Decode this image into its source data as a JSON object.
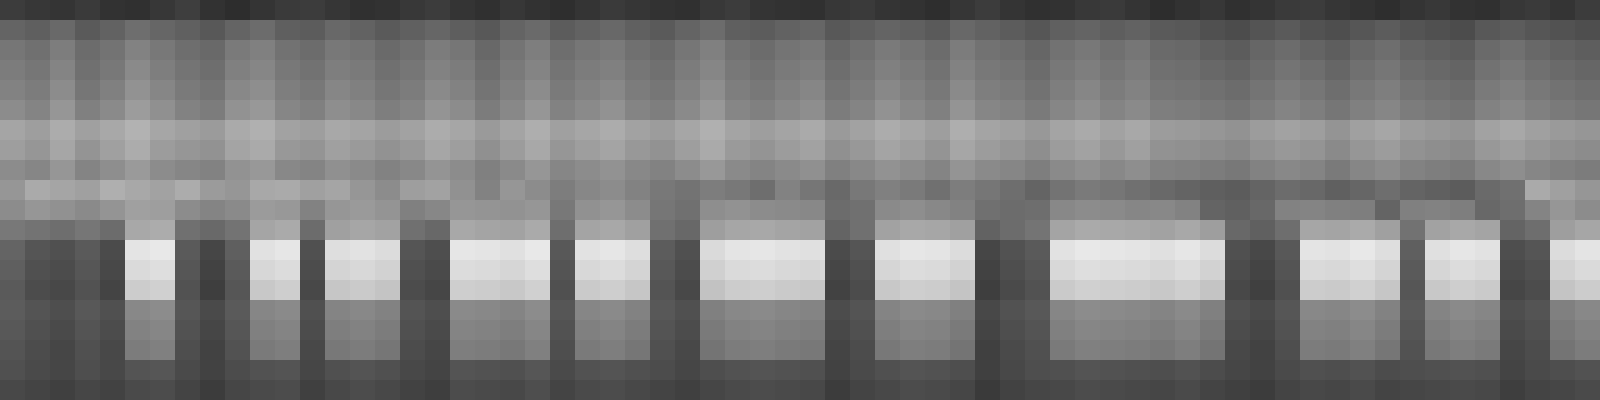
{
  "chart_data": {
    "type": "heatmap",
    "tick_labels": false,
    "zlim": [
      0,
      255
    ],
    "cells": [
      [
        60,
        55,
        52,
        58,
        50,
        48,
        55,
        62,
        50,
        45,
        52,
        58,
        60,
        54,
        48,
        50,
        56,
        60,
        52,
        48,
        55,
        50,
        46,
        52,
        58,
        54,
        50,
        48,
        56,
        60,
        52,
        50,
        48,
        55,
        58,
        52,
        50,
        46,
        54,
        60,
        52,
        48,
        50,
        56,
        58,
        52,
        45,
        50,
        55,
        48,
        52,
        58,
        60,
        54,
        50,
        46,
        52,
        56,
        50,
        48,
        55,
        58,
        52,
        60
      ],
      [
        100,
        95,
        105,
        90,
        98,
        110,
        102,
        96,
        88,
        100,
        108,
        95,
        92,
        104,
        98,
        90,
        96,
        102,
        94,
        88,
        100,
        106,
        92,
        98,
        104,
        96,
        90,
        100,
        108,
        95,
        92,
        98,
        102,
        88,
        94,
        100,
        96,
        90,
        104,
        98,
        92,
        86,
        96,
        100,
        94,
        98,
        90,
        88,
        80,
        76,
        84,
        90,
        82,
        78,
        86,
        92,
        84,
        80,
        76,
        88,
        92,
        86,
        82,
        78
      ],
      [
        118,
        112,
        125,
        108,
        115,
        130,
        120,
        110,
        105,
        122,
        128,
        114,
        108,
        120,
        116,
        106,
        112,
        124,
        118,
        104,
        116,
        126,
        110,
        118,
        122,
        112,
        106,
        118,
        128,
        114,
        108,
        116,
        120,
        104,
        112,
        122,
        116,
        108,
        124,
        114,
        110,
        102,
        114,
        120,
        112,
        118,
        106,
        104,
        96,
        92,
        102,
        108,
        100,
        94,
        104,
        110,
        100,
        96,
        92,
        106,
        112,
        104,
        98,
        94
      ],
      [
        124,
        118,
        132,
        112,
        120,
        138,
        126,
        116,
        110,
        128,
        134,
        120,
        114,
        126,
        122,
        112,
        118,
        130,
        124,
        110,
        122,
        132,
        116,
        124,
        128,
        118,
        112,
        124,
        134,
        120,
        114,
        122,
        126,
        110,
        118,
        128,
        122,
        114,
        130,
        120,
        116,
        108,
        120,
        126,
        118,
        124,
        112,
        110,
        104,
        100,
        108,
        116,
        110,
        102,
        112,
        118,
        108,
        104,
        100,
        114,
        120,
        112,
        106,
        102
      ],
      [
        130,
        124,
        140,
        118,
        128,
        146,
        134,
        122,
        116,
        136,
        142,
        126,
        120,
        134,
        128,
        118,
        124,
        138,
        130,
        116,
        128,
        140,
        122,
        130,
        136,
        124,
        118,
        130,
        142,
        126,
        120,
        128,
        134,
        116,
        124,
        136,
        128,
        120,
        138,
        126,
        122,
        114,
        126,
        134,
        124,
        130,
        118,
        116,
        112,
        108,
        116,
        124,
        118,
        110,
        120,
        126,
        116,
        112,
        108,
        122,
        128,
        120,
        114,
        110
      ],
      [
        140,
        132,
        150,
        128,
        138,
        156,
        144,
        130,
        124,
        146,
        152,
        134,
        128,
        142,
        136,
        126,
        132,
        148,
        140,
        124,
        136,
        150,
        130,
        138,
        146,
        132,
        126,
        138,
        152,
        134,
        128,
        136,
        142,
        124,
        132,
        146,
        136,
        128,
        148,
        134,
        130,
        122,
        134,
        142,
        132,
        138,
        126,
        124,
        120,
        116,
        124,
        132,
        126,
        118,
        128,
        134,
        124,
        120,
        116,
        130,
        136,
        128,
        122,
        118
      ],
      [
        165,
        158,
        172,
        160,
        168,
        178,
        166,
        160,
        155,
        170,
        176,
        162,
        158,
        168,
        164,
        156,
        162,
        172,
        166,
        154,
        164,
        174,
        160,
        166,
        172,
        162,
        156,
        166,
        176,
        164,
        158,
        164,
        170,
        154,
        162,
        172,
        166,
        158,
        174,
        164,
        160,
        152,
        164,
        170,
        162,
        168,
        156,
        154,
        150,
        146,
        156,
        162,
        158,
        148,
        160,
        166,
        156,
        152,
        148,
        162,
        168,
        160,
        154,
        150
      ],
      [
        158,
        150,
        166,
        148,
        160,
        172,
        156,
        150,
        146,
        164,
        170,
        152,
        148,
        160,
        154,
        146,
        152,
        166,
        158,
        144,
        156,
        168,
        150,
        158,
        164,
        152,
        146,
        158,
        170,
        154,
        148,
        156,
        162,
        144,
        152,
        164,
        158,
        148,
        166,
        156,
        150,
        142,
        156,
        162,
        152,
        160,
        146,
        144,
        140,
        136,
        146,
        152,
        148,
        138,
        150,
        156,
        146,
        142,
        138,
        152,
        158,
        150,
        144,
        140
      ],
      [
        140,
        134,
        150,
        132,
        142,
        154,
        140,
        134,
        130,
        146,
        152,
        136,
        132,
        144,
        138,
        130,
        136,
        148,
        140,
        128,
        138,
        150,
        134,
        140,
        146,
        136,
        130,
        140,
        152,
        138,
        132,
        138,
        144,
        128,
        136,
        146,
        140,
        132,
        148,
        138,
        134,
        126,
        138,
        144,
        136,
        142,
        130,
        128,
        124,
        120,
        130,
        136,
        132,
        122,
        134,
        140,
        130,
        126,
        122,
        136,
        142,
        134,
        128,
        124
      ],
      [
        150,
        170,
        165,
        160,
        175,
        168,
        162,
        172,
        155,
        150,
        168,
        170,
        160,
        165,
        150,
        140,
        158,
        162,
        145,
        130,
        150,
        140,
        125,
        135,
        140,
        130,
        120,
        115,
        125,
        120,
        110,
        130,
        118,
        105,
        120,
        128,
        122,
        112,
        125,
        118,
        110,
        100,
        115,
        122,
        118,
        112,
        105,
        100,
        95,
        92,
        100,
        108,
        104,
        96,
        102,
        110,
        100,
        96,
        92,
        106,
        112,
        170,
        160,
        150
      ],
      [
        140,
        150,
        145,
        138,
        148,
        160,
        158,
        140,
        132,
        138,
        155,
        152,
        130,
        150,
        154,
        148,
        128,
        135,
        150,
        148,
        146,
        150,
        120,
        145,
        150,
        140,
        118,
        112,
        142,
        146,
        140,
        138,
        136,
        108,
        112,
        138,
        142,
        136,
        130,
        112,
        108,
        110,
        136,
        140,
        138,
        134,
        136,
        130,
        100,
        96,
        104,
        130,
        132,
        128,
        126,
        100,
        128,
        130,
        126,
        104,
        110,
        132,
        150,
        140
      ],
      [
        120,
        115,
        110,
        118,
        108,
        168,
        172,
        112,
        105,
        115,
        165,
        170,
        108,
        160,
        166,
        162,
        112,
        104,
        168,
        164,
        162,
        170,
        110,
        164,
        168,
        160,
        112,
        104,
        158,
        166,
        168,
        164,
        162,
        100,
        112,
        162,
        168,
        166,
        160,
        98,
        108,
        116,
        164,
        170,
        168,
        166,
        162,
        168,
        158,
        104,
        96,
        110,
        166,
        164,
        170,
        160,
        114,
        162,
        168,
        164,
        100,
        110,
        158,
        166
      ],
      [
        100,
        85,
        80,
        90,
        75,
        228,
        232,
        90,
        70,
        95,
        225,
        230,
        80,
        222,
        226,
        220,
        85,
        78,
        230,
        228,
        224,
        232,
        88,
        226,
        230,
        222,
        92,
        80,
        218,
        228,
        230,
        226,
        224,
        75,
        85,
        224,
        230,
        228,
        220,
        70,
        82,
        90,
        226,
        232,
        230,
        228,
        224,
        230,
        220,
        80,
        72,
        88,
        228,
        226,
        232,
        222,
        95,
        224,
        230,
        226,
        78,
        85,
        220,
        228
      ],
      [
        95,
        80,
        76,
        86,
        72,
        218,
        222,
        86,
        66,
        90,
        215,
        220,
        76,
        212,
        216,
        210,
        80,
        74,
        220,
        218,
        214,
        222,
        84,
        216,
        220,
        212,
        88,
        76,
        208,
        218,
        220,
        216,
        214,
        70,
        80,
        214,
        220,
        218,
        210,
        66,
        78,
        86,
        216,
        222,
        220,
        218,
        214,
        220,
        210,
        76,
        68,
        84,
        218,
        216,
        222,
        212,
        90,
        214,
        220,
        216,
        74,
        80,
        210,
        218
      ],
      [
        90,
        76,
        72,
        82,
        68,
        204,
        208,
        82,
        62,
        86,
        200,
        206,
        72,
        198,
        202,
        196,
        76,
        70,
        206,
        204,
        200,
        208,
        80,
        202,
        206,
        198,
        84,
        72,
        194,
        204,
        206,
        202,
        200,
        66,
        76,
        200,
        206,
        204,
        196,
        62,
        74,
        82,
        202,
        208,
        206,
        204,
        200,
        206,
        196,
        72,
        64,
        80,
        204,
        202,
        208,
        198,
        86,
        200,
        206,
        202,
        70,
        76,
        196,
        204
      ],
      [
        92,
        84,
        78,
        88,
        80,
        136,
        140,
        86,
        74,
        90,
        134,
        138,
        80,
        132,
        136,
        130,
        84,
        78,
        138,
        136,
        132,
        140,
        86,
        134,
        138,
        130,
        88,
        80,
        128,
        136,
        138,
        134,
        132,
        76,
        84,
        132,
        138,
        136,
        128,
        72,
        82,
        88,
        134,
        140,
        138,
        136,
        132,
        138,
        128,
        80,
        74,
        86,
        136,
        134,
        140,
        130,
        90,
        132,
        138,
        134,
        78,
        84,
        128,
        136
      ],
      [
        88,
        80,
        74,
        84,
        76,
        130,
        134,
        82,
        70,
        86,
        128,
        132,
        76,
        126,
        130,
        124,
        80,
        74,
        132,
        130,
        126,
        134,
        82,
        128,
        132,
        124,
        84,
        76,
        122,
        130,
        132,
        128,
        126,
        72,
        80,
        126,
        132,
        130,
        122,
        68,
        78,
        84,
        128,
        134,
        132,
        130,
        126,
        132,
        122,
        76,
        70,
        82,
        130,
        128,
        134,
        124,
        86,
        126,
        132,
        128,
        74,
        80,
        122,
        130
      ],
      [
        84,
        76,
        70,
        80,
        72,
        124,
        128,
        78,
        66,
        82,
        122,
        126,
        72,
        120,
        124,
        118,
        76,
        70,
        126,
        124,
        120,
        128,
        78,
        122,
        126,
        118,
        80,
        72,
        116,
        124,
        126,
        122,
        120,
        68,
        76,
        120,
        126,
        124,
        116,
        64,
        74,
        80,
        122,
        128,
        126,
        124,
        120,
        126,
        116,
        72,
        66,
        78,
        124,
        122,
        128,
        118,
        82,
        120,
        126,
        122,
        70,
        76,
        116,
        124
      ],
      [
        80,
        74,
        70,
        78,
        72,
        84,
        86,
        74,
        66,
        76,
        82,
        84,
        70,
        80,
        84,
        80,
        72,
        68,
        84,
        82,
        80,
        86,
        74,
        82,
        84,
        80,
        76,
        70,
        78,
        82,
        84,
        82,
        80,
        66,
        74,
        80,
        84,
        82,
        78,
        64,
        72,
        78,
        80,
        84,
        82,
        80,
        78,
        82,
        76,
        70,
        66,
        74,
        80,
        78,
        82,
        76,
        78,
        80,
        82,
        80,
        68,
        74,
        78,
        82
      ],
      [
        72,
        68,
        64,
        70,
        66,
        74,
        76,
        68,
        60,
        70,
        74,
        76,
        64,
        72,
        76,
        72,
        66,
        62,
        76,
        74,
        72,
        78,
        68,
        74,
        76,
        72,
        68,
        64,
        70,
        74,
        76,
        74,
        72,
        60,
        68,
        72,
        76,
        74,
        70,
        58,
        66,
        70,
        72,
        76,
        74,
        72,
        70,
        74,
        68,
        64,
        60,
        68,
        72,
        70,
        74,
        68,
        70,
        72,
        74,
        72,
        62,
        68,
        70,
        74
      ]
    ]
  }
}
